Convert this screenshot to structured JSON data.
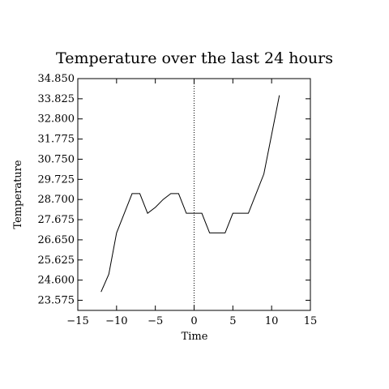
{
  "chart_data": {
    "type": "line",
    "title": "Temperature over the last 24 hours",
    "xlabel": "Time",
    "ylabel": "Temperature",
    "xlim": [
      -15,
      15
    ],
    "ylim": [
      23.06,
      34.85
    ],
    "xticks": [
      -15,
      -10,
      -5,
      0,
      5,
      10,
      15
    ],
    "xtick_labels": [
      "−15",
      "−10",
      "−5",
      "0",
      "5",
      "10",
      "15"
    ],
    "yticks": [
      23.575,
      24.6,
      25.625,
      26.65,
      27.675,
      28.7,
      29.725,
      30.75,
      31.775,
      32.8,
      33.825,
      34.85
    ],
    "ytick_labels": [
      "23.575",
      "24.600",
      "25.625",
      "26.650",
      "27.675",
      "28.700",
      "29.725",
      "30.750",
      "31.775",
      "32.800",
      "33.825",
      "34.850"
    ],
    "reference_line_x": 0,
    "series": [
      {
        "x": [
          -12,
          -11,
          -10,
          -9,
          -8,
          -7,
          -6,
          -5,
          -4,
          -3,
          -2,
          -1,
          0,
          1,
          2,
          3,
          4,
          5,
          6,
          7,
          8,
          9,
          10,
          11
        ],
        "y": [
          24,
          24.9,
          27,
          28,
          29,
          29,
          28,
          28.3,
          28.7,
          29,
          29,
          28,
          28,
          28,
          27,
          27,
          27,
          28,
          28,
          28,
          29,
          30,
          32,
          34
        ],
        "color": "#000000"
      }
    ]
  }
}
